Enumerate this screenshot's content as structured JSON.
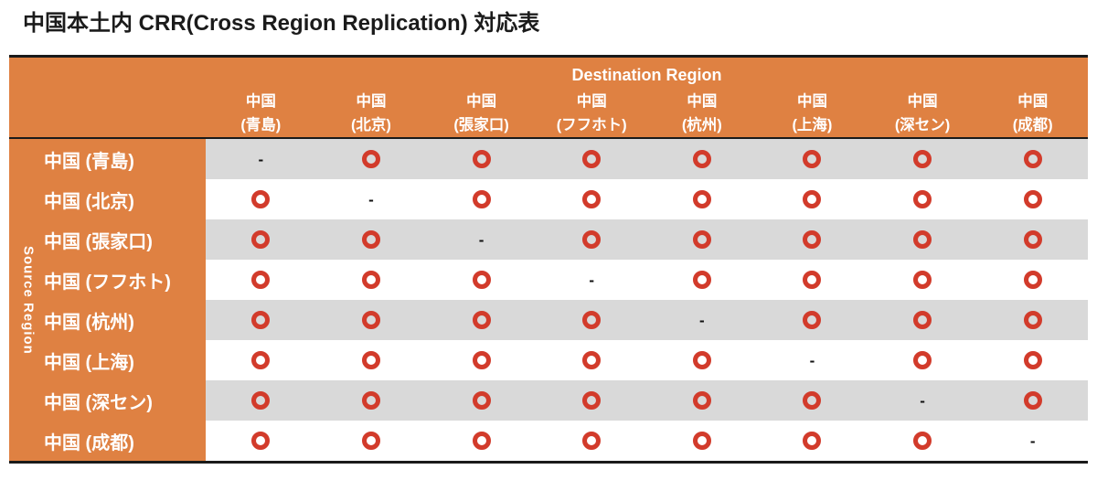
{
  "title": "中国本土内 CRR(Cross Region Replication) 対応表",
  "colors": {
    "header_orange": "#DF8142",
    "row_stripe_gray": "#D9D9D9",
    "row_stripe_white": "#FFFFFF",
    "circle_red": "#D23B2B",
    "border_black": "#1A1A1A",
    "header_text_white": "#FFFFFF",
    "title_text": "#1B1B1B"
  },
  "table": {
    "destination_label": "Destination Region",
    "source_label": "Source Region",
    "columns": [
      {
        "line1": "中国",
        "line2": "(青島)"
      },
      {
        "line1": "中国",
        "line2": "(北京)"
      },
      {
        "line1": "中国",
        "line2": "(張家口)"
      },
      {
        "line1": "中国",
        "line2": "(フフホト)"
      },
      {
        "line1": "中国",
        "line2": "(杭州)"
      },
      {
        "line1": "中国",
        "line2": "(上海)"
      },
      {
        "line1": "中国",
        "line2": "(深セン)"
      },
      {
        "line1": "中国",
        "line2": "(成都)"
      }
    ],
    "rows": [
      {
        "label": "中国 (青島)",
        "cells": [
          "-",
          "O",
          "O",
          "O",
          "O",
          "O",
          "O",
          "O"
        ]
      },
      {
        "label": "中国 (北京)",
        "cells": [
          "O",
          "-",
          "O",
          "O",
          "O",
          "O",
          "O",
          "O"
        ]
      },
      {
        "label": "中国 (張家口)",
        "cells": [
          "O",
          "O",
          "-",
          "O",
          "O",
          "O",
          "O",
          "O"
        ]
      },
      {
        "label": "中国 (フフホト)",
        "cells": [
          "O",
          "O",
          "O",
          "-",
          "O",
          "O",
          "O",
          "O"
        ]
      },
      {
        "label": "中国 (杭州)",
        "cells": [
          "O",
          "O",
          "O",
          "O",
          "-",
          "O",
          "O",
          "O"
        ]
      },
      {
        "label": "中国 (上海)",
        "cells": [
          "O",
          "O",
          "O",
          "O",
          "O",
          "-",
          "O",
          "O"
        ]
      },
      {
        "label": "中国 (深セン)",
        "cells": [
          "O",
          "O",
          "O",
          "O",
          "O",
          "O",
          "-",
          "O"
        ]
      },
      {
        "label": "中国 (成都)",
        "cells": [
          "O",
          "O",
          "O",
          "O",
          "O",
          "O",
          "O",
          "-"
        ]
      }
    ],
    "symbols": {
      "supported": "O",
      "same_region": "-"
    }
  }
}
